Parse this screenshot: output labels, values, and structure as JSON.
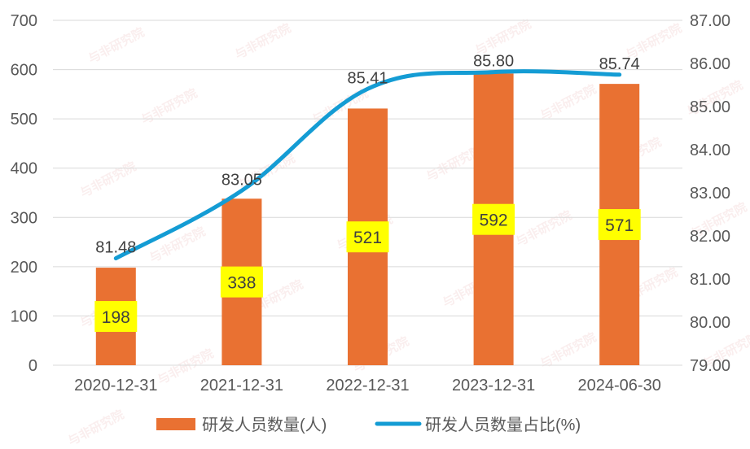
{
  "watermark": "与非研究院",
  "colors": {
    "bar": "#E97132",
    "line": "#149CD4",
    "label_box": "#FFFF00",
    "grid": "#D9D9D9",
    "text": "#595959"
  },
  "chart_data": {
    "type": "bar",
    "categories": [
      "2020-12-31",
      "2021-12-31",
      "2022-12-31",
      "2023-12-31",
      "2024-06-30"
    ],
    "series": [
      {
        "name": "研发人员数量(人)",
        "type": "bar",
        "axis": "left",
        "values": [
          198,
          338,
          521,
          592,
          571
        ],
        "value_labels": [
          "198",
          "338",
          "521",
          "592",
          "571"
        ]
      },
      {
        "name": "研发人员数量占比(%)",
        "type": "line",
        "axis": "right",
        "values": [
          81.48,
          83.05,
          85.41,
          85.8,
          85.74
        ],
        "value_labels": [
          "81.48",
          "83.05",
          "85.41",
          "85.80",
          "85.74"
        ]
      }
    ],
    "y_left": {
      "min": 0,
      "max": 700,
      "step": 100,
      "ticks": [
        "0",
        "100",
        "200",
        "300",
        "400",
        "500",
        "600",
        "700"
      ]
    },
    "y_right": {
      "min": 79,
      "max": 87,
      "step": 1,
      "ticks": [
        "79.00",
        "80.00",
        "81.00",
        "82.00",
        "83.00",
        "84.00",
        "85.00",
        "86.00",
        "87.00"
      ]
    },
    "grid": true,
    "legend": "bottom"
  }
}
